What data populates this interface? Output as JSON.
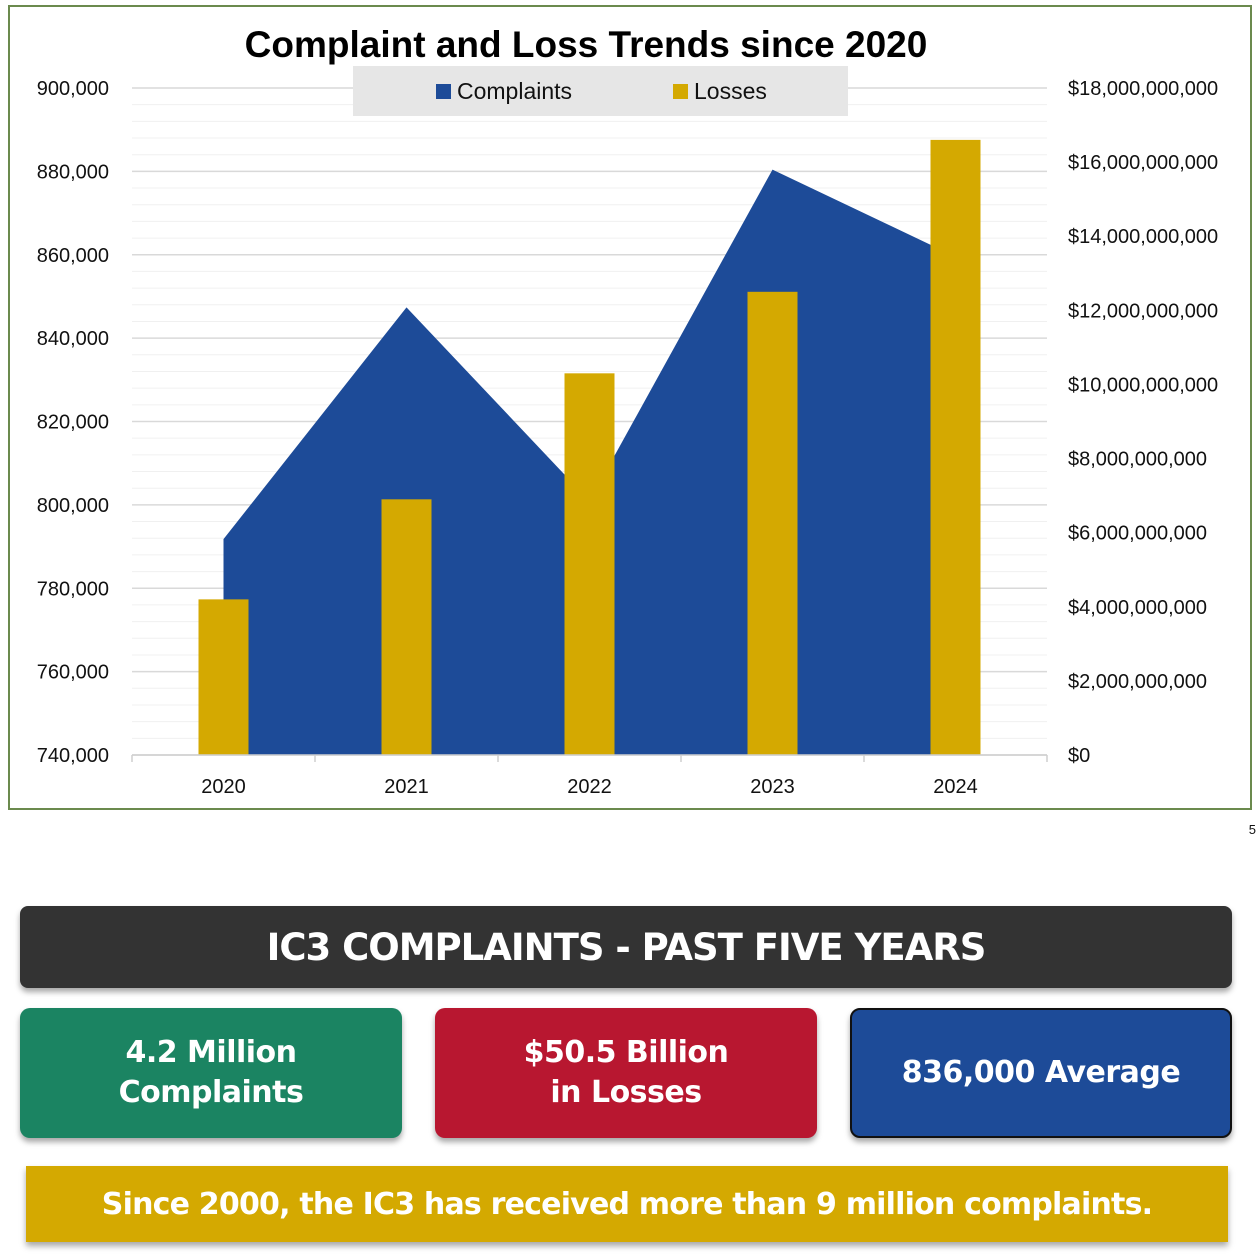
{
  "chart_data": {
    "type": "bar",
    "title": "Complaint and Loss Trends since 2020",
    "categories": [
      "2020",
      "2021",
      "2022",
      "2023",
      "2024"
    ],
    "series": [
      {
        "name": "Complaints",
        "kind": "area",
        "axis": "left",
        "color": "#1d4b98",
        "values": [
          791790,
          847376,
          800944,
          880418,
          859532
        ]
      },
      {
        "name": "Losses",
        "kind": "bar",
        "axis": "right",
        "color": "#d4a901",
        "values": [
          4200000000,
          6900000000,
          10300000000,
          12500000000,
          16600000000
        ]
      }
    ],
    "y_left": {
      "range": [
        740000,
        900000
      ],
      "ticks": [
        "740,000",
        "760,000",
        "780,000",
        "800,000",
        "820,000",
        "840,000",
        "860,000",
        "880,000",
        "900,000"
      ],
      "tick_values": [
        740000,
        760000,
        780000,
        800000,
        820000,
        840000,
        860000,
        880000,
        900000
      ]
    },
    "y_right": {
      "range": [
        0,
        18000000000
      ],
      "ticks": [
        "$0",
        "$2,000,000,000",
        "$4,000,000,000",
        "$6,000,000,000",
        "$8,000,000,000",
        "$10,000,000,000",
        "$12,000,000,000",
        "$14,000,000,000",
        "$16,000,000,000",
        "$18,000,000,000"
      ],
      "tick_values": [
        0,
        2000000000,
        4000000000,
        6000000000,
        8000000000,
        10000000000,
        12000000000,
        14000000000,
        16000000000,
        18000000000
      ]
    },
    "grid": true,
    "legend": {
      "placement": "top-center",
      "entries": [
        "Complaints",
        "Losses"
      ]
    }
  },
  "page_number": "5",
  "summary": {
    "banner": "IC3 COMPLAINTS - PAST FIVE YEARS",
    "cards": [
      {
        "line1": "4.2 Million",
        "line2": "Complaints",
        "color": "#1b8462"
      },
      {
        "line1": "$50.5 Billion",
        "line2": "in Losses",
        "color": "#b81730"
      },
      {
        "line1": "836,000 Average",
        "color": "#1d4b98"
      }
    ],
    "footer": "Since 2000, the IC3 has received more than 9 million complaints.",
    "footer_color": "#d4a901"
  }
}
